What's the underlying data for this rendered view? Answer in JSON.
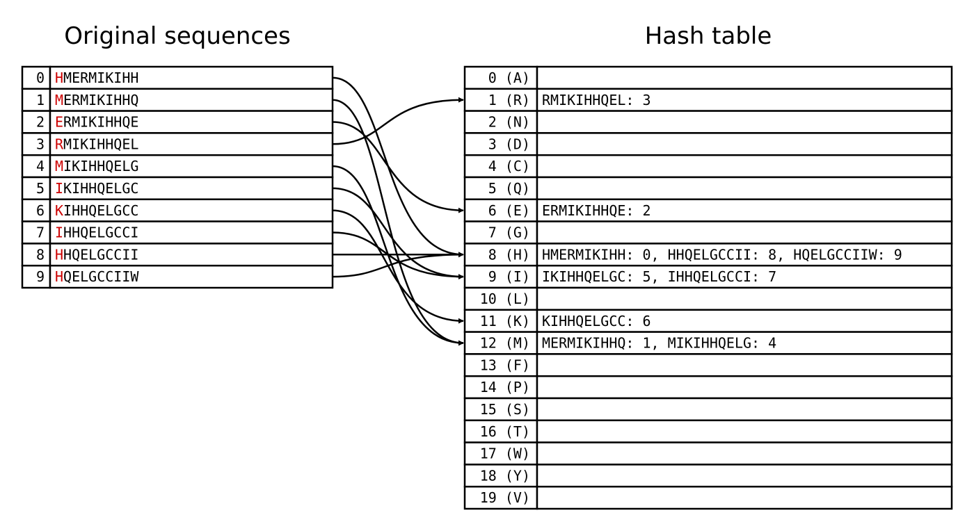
{
  "left_title": "Original sequences",
  "right_title": "Hash table",
  "sequences": [
    {
      "index": "0",
      "first": "H",
      "rest": "MERMIKIHH",
      "bucket": 8
    },
    {
      "index": "1",
      "first": "M",
      "rest": "ERMIKIHHQ",
      "bucket": 12
    },
    {
      "index": "2",
      "first": "E",
      "rest": "RMIKIHHQE",
      "bucket": 6
    },
    {
      "index": "3",
      "first": "R",
      "rest": "MIKIHHQEL",
      "bucket": 1
    },
    {
      "index": "4",
      "first": "M",
      "rest": "IKIHHQELG",
      "bucket": 12
    },
    {
      "index": "5",
      "first": "I",
      "rest": "KIHHQELGC",
      "bucket": 9
    },
    {
      "index": "6",
      "first": "K",
      "rest": "IHHQELGCC",
      "bucket": 11
    },
    {
      "index": "7",
      "first": "I",
      "rest": "HHQELGCCI",
      "bucket": 9
    },
    {
      "index": "8",
      "first": "H",
      "rest": "HQELGCCII",
      "bucket": 8
    },
    {
      "index": "9",
      "first": "H",
      "rest": "QELGCCIIW",
      "bucket": 8
    }
  ],
  "hash_table": [
    {
      "key": "0 (A)",
      "value": ""
    },
    {
      "key": "1 (R)",
      "value": "RMIKIHHQEL: 3"
    },
    {
      "key": "2 (N)",
      "value": ""
    },
    {
      "key": "3 (D)",
      "value": ""
    },
    {
      "key": "4 (C)",
      "value": ""
    },
    {
      "key": "5 (Q)",
      "value": ""
    },
    {
      "key": "6 (E)",
      "value": "ERMIKIHHQE: 2"
    },
    {
      "key": "7 (G)",
      "value": ""
    },
    {
      "key": "8 (H)",
      "value": "HMERMIKIHH: 0, HHQELGCCII: 8, HQELGCCIIW: 9"
    },
    {
      "key": "9 (I)",
      "value": "IKIHHQELGC: 5, IHHQELGCCI: 7"
    },
    {
      "key": "10 (L)",
      "value": ""
    },
    {
      "key": "11 (K)",
      "value": "KIHHQELGCC: 6"
    },
    {
      "key": "12 (M)",
      "value": "MERMIKIHHQ: 1, MIKIHHQELG: 4"
    },
    {
      "key": "13 (F)",
      "value": ""
    },
    {
      "key": "14 (P)",
      "value": ""
    },
    {
      "key": "15 (S)",
      "value": ""
    },
    {
      "key": "16 (T)",
      "value": ""
    },
    {
      "key": "17 (W)",
      "value": ""
    },
    {
      "key": "18 (Y)",
      "value": ""
    },
    {
      "key": "19 (V)",
      "value": ""
    }
  ],
  "colors": {
    "highlight": "#cc0000",
    "line": "#000000"
  }
}
